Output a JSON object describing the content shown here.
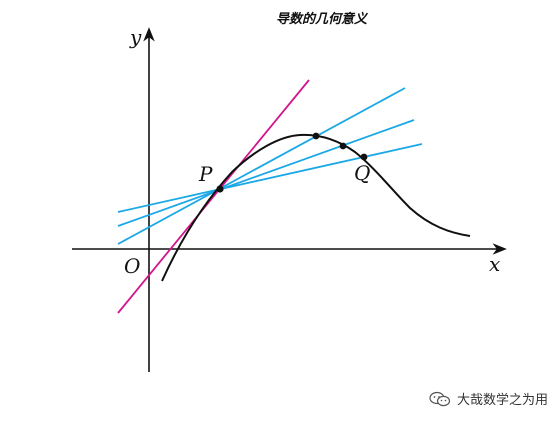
{
  "title": "导数的几何意义",
  "labels": {
    "y_axis": "y",
    "x_axis": "x",
    "origin": "O",
    "point_p": "P",
    "point_q": "Q"
  },
  "colors": {
    "curve": "#111111",
    "axes": "#111111",
    "secant": "#1aa8e6",
    "tangent": "#d4148c"
  },
  "watermark": {
    "icon": "wechat-icon",
    "text": "大哉数学之为用"
  }
}
